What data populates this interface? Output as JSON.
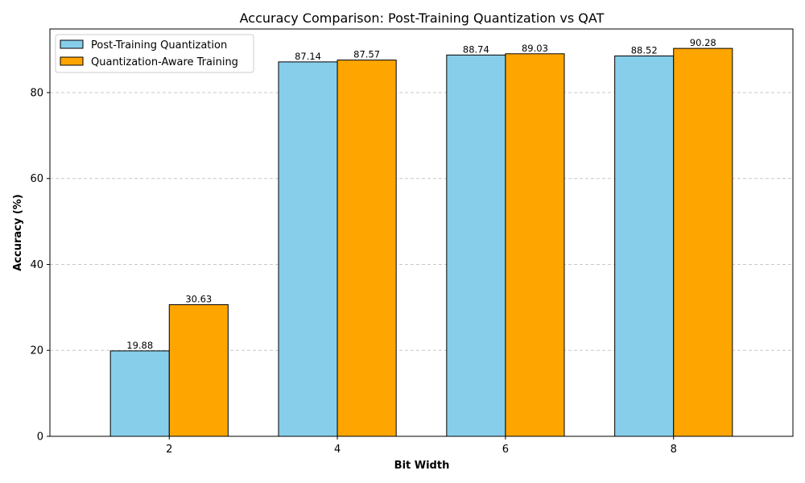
{
  "chart_data": {
    "type": "bar",
    "title": "Accuracy Comparison: Post-Training Quantization vs QAT",
    "xlabel": "Bit Width",
    "ylabel": "Accuracy (%)",
    "categories": [
      "2",
      "4",
      "6",
      "8"
    ],
    "series": [
      {
        "name": "Post-Training Quantization",
        "color": "#87CEEB",
        "values": [
          19.88,
          87.14,
          88.74,
          88.52
        ]
      },
      {
        "name": "Quantization-Aware Training",
        "color": "#FFA500",
        "values": [
          30.63,
          87.57,
          89.03,
          90.28
        ]
      }
    ],
    "ylim": [
      0,
      94.8
    ],
    "yticks": [
      0,
      20,
      40,
      60,
      80
    ],
    "grid": "y-dashed",
    "legend_position": "top-left"
  }
}
